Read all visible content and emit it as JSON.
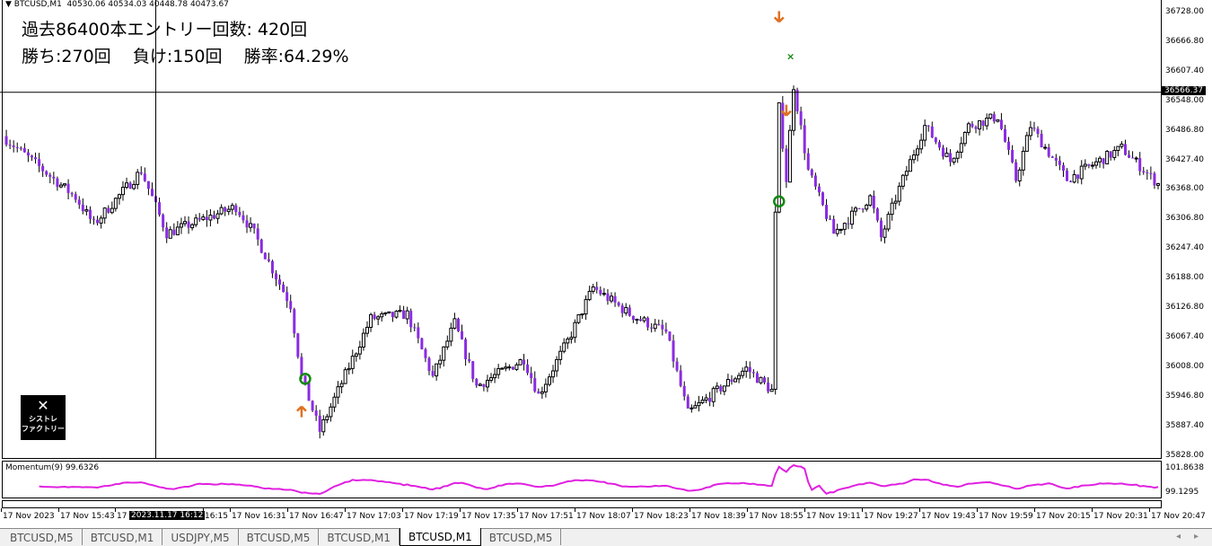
{
  "header": {
    "symbol": "BTCUSD,M1",
    "ohlc": "40530.06 40534.03 40448.78 40473.67"
  },
  "stats": {
    "line1": "過去86400本エントリー回数: 420回",
    "line2": "勝ち:270回    負け:150回    勝率:64.29%"
  },
  "logo": {
    "line1": "シストレ",
    "line2": "ファクトリー"
  },
  "price_axis": {
    "labels": [
      "36728.00",
      "36666.80",
      "36607.40",
      "36548.00",
      "36486.80",
      "36427.40",
      "36368.00",
      "36306.80",
      "36247.40",
      "36188.00",
      "36126.80",
      "36067.40",
      "36008.00",
      "35946.80",
      "35887.40",
      "35828.00"
    ],
    "current": "36566.37",
    "range": [
      35828,
      36728
    ]
  },
  "indicator": {
    "label": "Momentum(9) 99.6326",
    "max": "101.8638",
    "min": "99.1295",
    "color": "#e020e0"
  },
  "time_axis": {
    "labels": [
      "17 Nov 2023",
      "17 Nov 15:43",
      "17",
      "16:15",
      "17 Nov 16:31",
      "17 Nov 16:47",
      "17 Nov 17:03",
      "17 Nov 17:19",
      "17 Nov 17:35",
      "17 Nov 17:51",
      "17 Nov 18:07",
      "17 Nov 18:23",
      "17 Nov 18:39",
      "17 Nov 18:55",
      "17 Nov 19:11",
      "17 Nov 19:27",
      "17 Nov 19:43",
      "17 Nov 19:59",
      "17 Nov 20:15",
      "17 Nov 20:31",
      "17 Nov 20:47"
    ],
    "crosshair": "2023.11.17 16:12",
    "start": "15:30",
    "end": "20:47"
  },
  "colors": {
    "bear": "#8a2be2",
    "bull": "#ffffff",
    "outline": "#000000",
    "arrow": "#e07020",
    "circle": "#118811",
    "cross": "#118811"
  },
  "chart_data": {
    "type": "candlestick",
    "price_path": [
      [
        "15:31",
        36471
      ],
      [
        "15:50",
        36353
      ],
      [
        "15:55",
        36298
      ],
      [
        "16:08",
        36407
      ],
      [
        "16:15",
        36280
      ],
      [
        "16:34",
        36334
      ],
      [
        "16:39",
        36280
      ],
      [
        "16:49",
        36134
      ],
      [
        "16:52",
        35988
      ],
      [
        "16:57",
        35879
      ],
      [
        "17:11",
        36107
      ],
      [
        "17:21",
        36116
      ],
      [
        "17:28",
        35988
      ],
      [
        "17:34",
        36098
      ],
      [
        "17:40",
        35970
      ],
      [
        "17:53",
        36025
      ],
      [
        "17:57",
        35952
      ],
      [
        "18:05",
        36061
      ],
      [
        "18:12",
        36170
      ],
      [
        "18:22",
        36116
      ],
      [
        "18:32",
        36079
      ],
      [
        "18:38",
        35915
      ],
      [
        "18:54",
        36006
      ],
      [
        "19:01",
        35961
      ],
      [
        "19:02",
        36316
      ],
      [
        "19:03",
        36535
      ],
      [
        "19:05",
        36389
      ],
      [
        "19:07",
        36580
      ],
      [
        "19:11",
        36407
      ],
      [
        "19:18",
        36280
      ],
      [
        "19:28",
        36353
      ],
      [
        "19:31",
        36271
      ],
      [
        "19:36",
        36371
      ],
      [
        "19:43",
        36498
      ],
      [
        "19:50",
        36426
      ],
      [
        "19:55",
        36498
      ],
      [
        "20:03",
        36517
      ],
      [
        "20:08",
        36389
      ],
      [
        "20:12",
        36498
      ],
      [
        "20:22",
        36389
      ],
      [
        "20:37",
        36453
      ],
      [
        "20:47",
        36380
      ]
    ],
    "markers": [
      {
        "type": "arrow-down",
        "time": "19:03",
        "price": 36720
      },
      {
        "type": "cross",
        "time": "19:06",
        "price": 36640
      },
      {
        "type": "arrow-down",
        "time": "19:05",
        "price": 36530
      },
      {
        "type": "circle",
        "time": "19:03",
        "price": 36345
      },
      {
        "type": "circle",
        "time": "16:53",
        "price": 35985
      },
      {
        "type": "arrow-up",
        "time": "16:52",
        "price": 35918
      }
    ],
    "crosshair": {
      "time": "16:12",
      "price": 36566.37
    }
  },
  "tabs": [
    {
      "label": "BTCUSD,M5"
    },
    {
      "label": "BTCUSD,M1"
    },
    {
      "label": "USDJPY,M5"
    },
    {
      "label": "BTCUSD,M5"
    },
    {
      "label": "BTCUSD,M1"
    },
    {
      "label": "BTCUSD,M1",
      "active": true
    },
    {
      "label": "BTCUSD,M5"
    }
  ]
}
